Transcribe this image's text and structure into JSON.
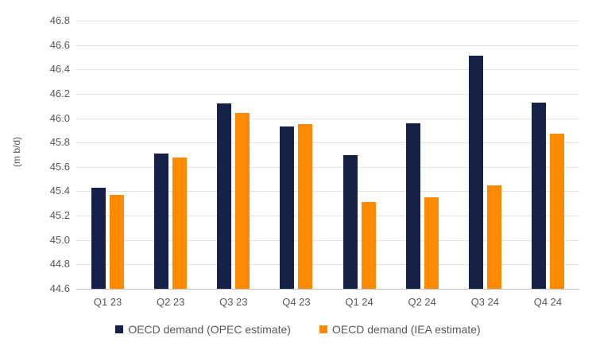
{
  "chart_data": {
    "type": "bar",
    "title": "",
    "xlabel": "",
    "ylabel": "(m b/d)",
    "categories": [
      "Q1 23",
      "Q2 23",
      "Q3 23",
      "Q4 23",
      "Q1 24",
      "Q2 24",
      "Q3 24",
      "Q4 24"
    ],
    "series": [
      {
        "name": "OECD demand (OPEC estimate)",
        "color": "#16214a",
        "values": [
          45.43,
          45.71,
          46.12,
          45.93,
          45.7,
          45.96,
          46.51,
          46.13
        ]
      },
      {
        "name": "OECD demand (IEA estimate)",
        "color": "#ff8a00",
        "values": [
          45.37,
          45.68,
          46.04,
          45.95,
          45.31,
          45.35,
          45.45,
          45.87
        ]
      }
    ],
    "ylim": [
      44.6,
      46.8
    ],
    "ytick_step": 0.2,
    "ytick_decimals": 1,
    "grid": true,
    "legend_position": "bottom"
  },
  "style_colors": {
    "gridline": "#e2e2e2",
    "axis_line": "#c0c0c0",
    "tick_text": "#595959",
    "background": "#ffffff"
  }
}
